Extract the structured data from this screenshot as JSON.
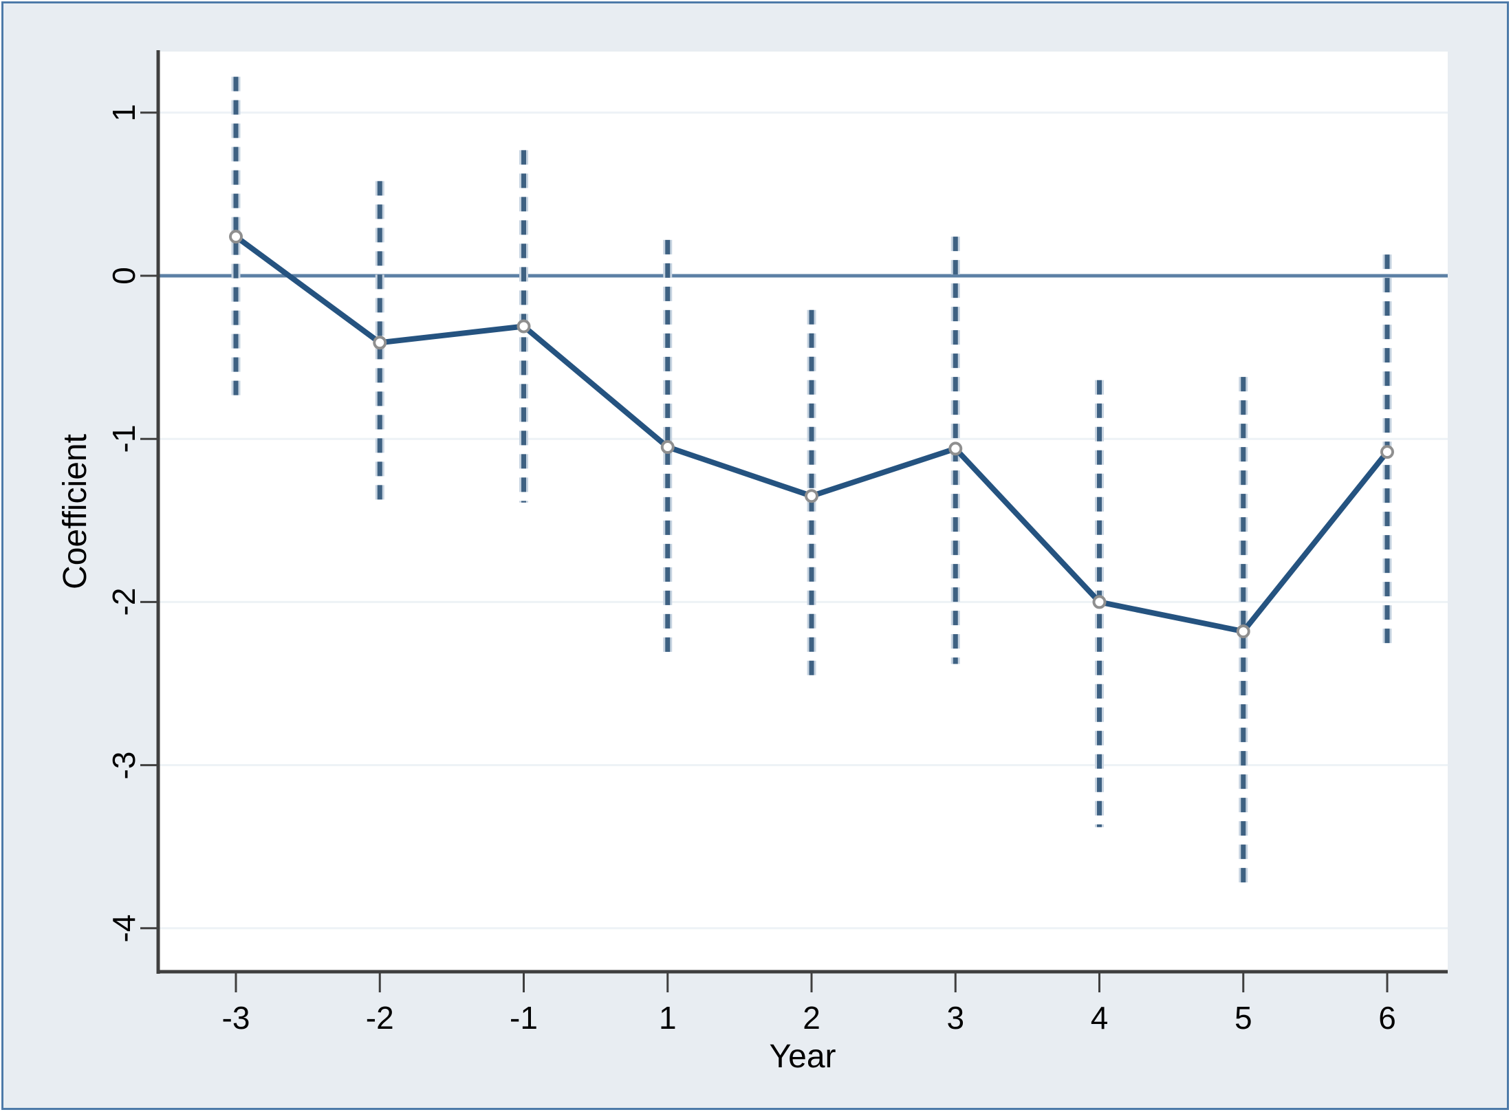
{
  "chart_data": {
    "type": "line",
    "title": "",
    "xlabel": "Year",
    "ylabel": "Coefficient",
    "x_tick_labels": [
      "-3",
      "-2",
      "-1",
      "1",
      "2",
      "3",
      "4",
      "5",
      "6"
    ],
    "x_values": [
      -3,
      -2,
      -1,
      1,
      2,
      3,
      4,
      5,
      6
    ],
    "y_tick_labels": [
      "1",
      "0",
      "-1",
      "-2",
      "-3",
      "-4"
    ],
    "y_tick_values": [
      1,
      0,
      -1,
      -2,
      -3,
      -4
    ],
    "ylim": [
      -4.26,
      1.38
    ],
    "grid": true,
    "legend": "none",
    "zero_line": 0,
    "series": [
      {
        "name": "Coefficient",
        "values": [
          0.24,
          -0.41,
          -0.31,
          -1.05,
          -1.35,
          -1.06,
          -2.0,
          -2.18,
          -1.08
        ]
      }
    ],
    "confidence_intervals": {
      "low": [
        -0.74,
        -1.4,
        -1.39,
        -2.34,
        -2.48,
        -2.38,
        -3.38,
        -3.76,
        -2.29
      ],
      "high": [
        1.22,
        0.58,
        0.77,
        0.22,
        -0.21,
        0.24,
        -0.64,
        -0.62,
        0.13
      ]
    },
    "colors": {
      "frame_border": "#4d7aa9",
      "margin_background": "#e8edf2",
      "plot_background": "#ffffff",
      "axis_line": "#3f3f3f",
      "gridline": "#edf2f6",
      "zero_line": "#5c80a5",
      "series_line": "#255380",
      "ci_dash_core": "#3e6182",
      "ci_dash_halo": "#c7d4e1",
      "marker_fill": "#ffffff",
      "marker_stroke": "#8f8f8f"
    }
  }
}
